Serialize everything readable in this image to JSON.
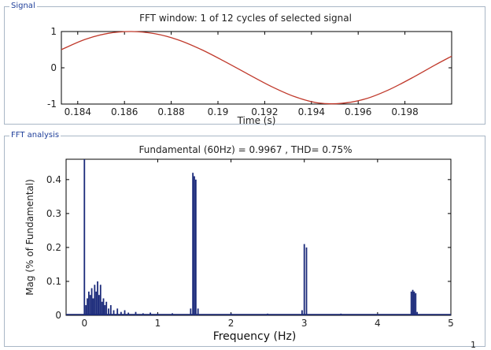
{
  "signal_panel": {
    "title": "Signal",
    "plot_title": "FFT window: 1 of 12 cycles of selected signal"
  },
  "fft_panel": {
    "title": "FFT analysis",
    "plot_title": "Fundamental (60Hz) = 0.9967 , THD= 0.75%"
  },
  "footer_fragment": "1",
  "colors": {
    "signal_line": "#c0392b",
    "fft_bars": "#1b2a7a",
    "panel_title": "#1f3f9a",
    "panel_border": "#a9b7c6"
  },
  "chart_data": [
    {
      "type": "line",
      "title": "FFT window: 1 of 12 cycles of selected signal",
      "xlabel": "Time (s)",
      "ylabel": "",
      "xlim": [
        0.1833,
        0.2
      ],
      "ylim": [
        -1,
        1
      ],
      "xticks": [
        0.184,
        0.186,
        0.188,
        0.19,
        0.192,
        0.194,
        0.196,
        0.198
      ],
      "xtick_labels": [
        "0.184",
        "0.186",
        "0.188",
        "0.19",
        "0.192",
        "0.194",
        "0.196",
        "0.198"
      ],
      "yticks": [
        -1,
        0,
        1
      ],
      "ytick_labels": [
        "-1",
        "0",
        "1"
      ],
      "series": [
        {
          "x": [
            0.1833,
            0.1843,
            0.1853,
            0.1863,
            0.1873,
            0.1883,
            0.1893,
            0.1903,
            0.1913,
            0.1923,
            0.1933,
            0.1943,
            0.1953,
            0.1963,
            0.1973,
            0.1983,
            0.1993,
            0.2
          ],
          "values": [
            0.5,
            0.78,
            0.95,
            1.0,
            0.94,
            0.77,
            0.5,
            0.17,
            -0.18,
            -0.52,
            -0.8,
            -0.97,
            -0.98,
            -0.86,
            -0.61,
            -0.28,
            0.08,
            0.32
          ]
        }
      ]
    },
    {
      "type": "bar",
      "title": "Fundamental (60Hz) = 0.9967 , THD= 0.75%",
      "xlabel": "Frequency (Hz)",
      "ylabel": "Mag (% of Fundamental)",
      "xlim": [
        -0.25,
        5
      ],
      "ylim": [
        0,
        0.46
      ],
      "xticks": [
        0,
        1,
        2,
        3,
        4,
        5
      ],
      "xtick_labels": [
        "0",
        "1",
        "2",
        "3",
        "4",
        "5"
      ],
      "yticks": [
        0,
        0.1,
        0.2,
        0.3,
        0.4
      ],
      "ytick_labels": [
        "0",
        "0.1",
        "0.2",
        "0.3",
        "0.4"
      ],
      "x": [
        0.0,
        0.02,
        0.04,
        0.06,
        0.08,
        0.1,
        0.12,
        0.14,
        0.16,
        0.18,
        0.2,
        0.22,
        0.24,
        0.26,
        0.28,
        0.3,
        0.33,
        0.36,
        0.4,
        0.45,
        0.5,
        0.55,
        0.6,
        0.7,
        0.8,
        0.9,
        1.0,
        1.2,
        1.45,
        1.48,
        1.5,
        1.52,
        1.55,
        2.0,
        2.5,
        2.97,
        3.0,
        3.03,
        3.5,
        4.0,
        4.46,
        4.48,
        4.5,
        4.52,
        4.54
      ],
      "values": [
        0.46,
        0.03,
        0.05,
        0.07,
        0.06,
        0.08,
        0.05,
        0.09,
        0.07,
        0.1,
        0.06,
        0.09,
        0.04,
        0.05,
        0.03,
        0.04,
        0.02,
        0.03,
        0.015,
        0.02,
        0.01,
        0.015,
        0.008,
        0.01,
        0.006,
        0.008,
        0.005,
        0.006,
        0.02,
        0.42,
        0.41,
        0.4,
        0.02,
        0.006,
        0.005,
        0.015,
        0.21,
        0.2,
        0.005,
        0.004,
        0.07,
        0.075,
        0.07,
        0.065,
        0.01
      ]
    }
  ]
}
